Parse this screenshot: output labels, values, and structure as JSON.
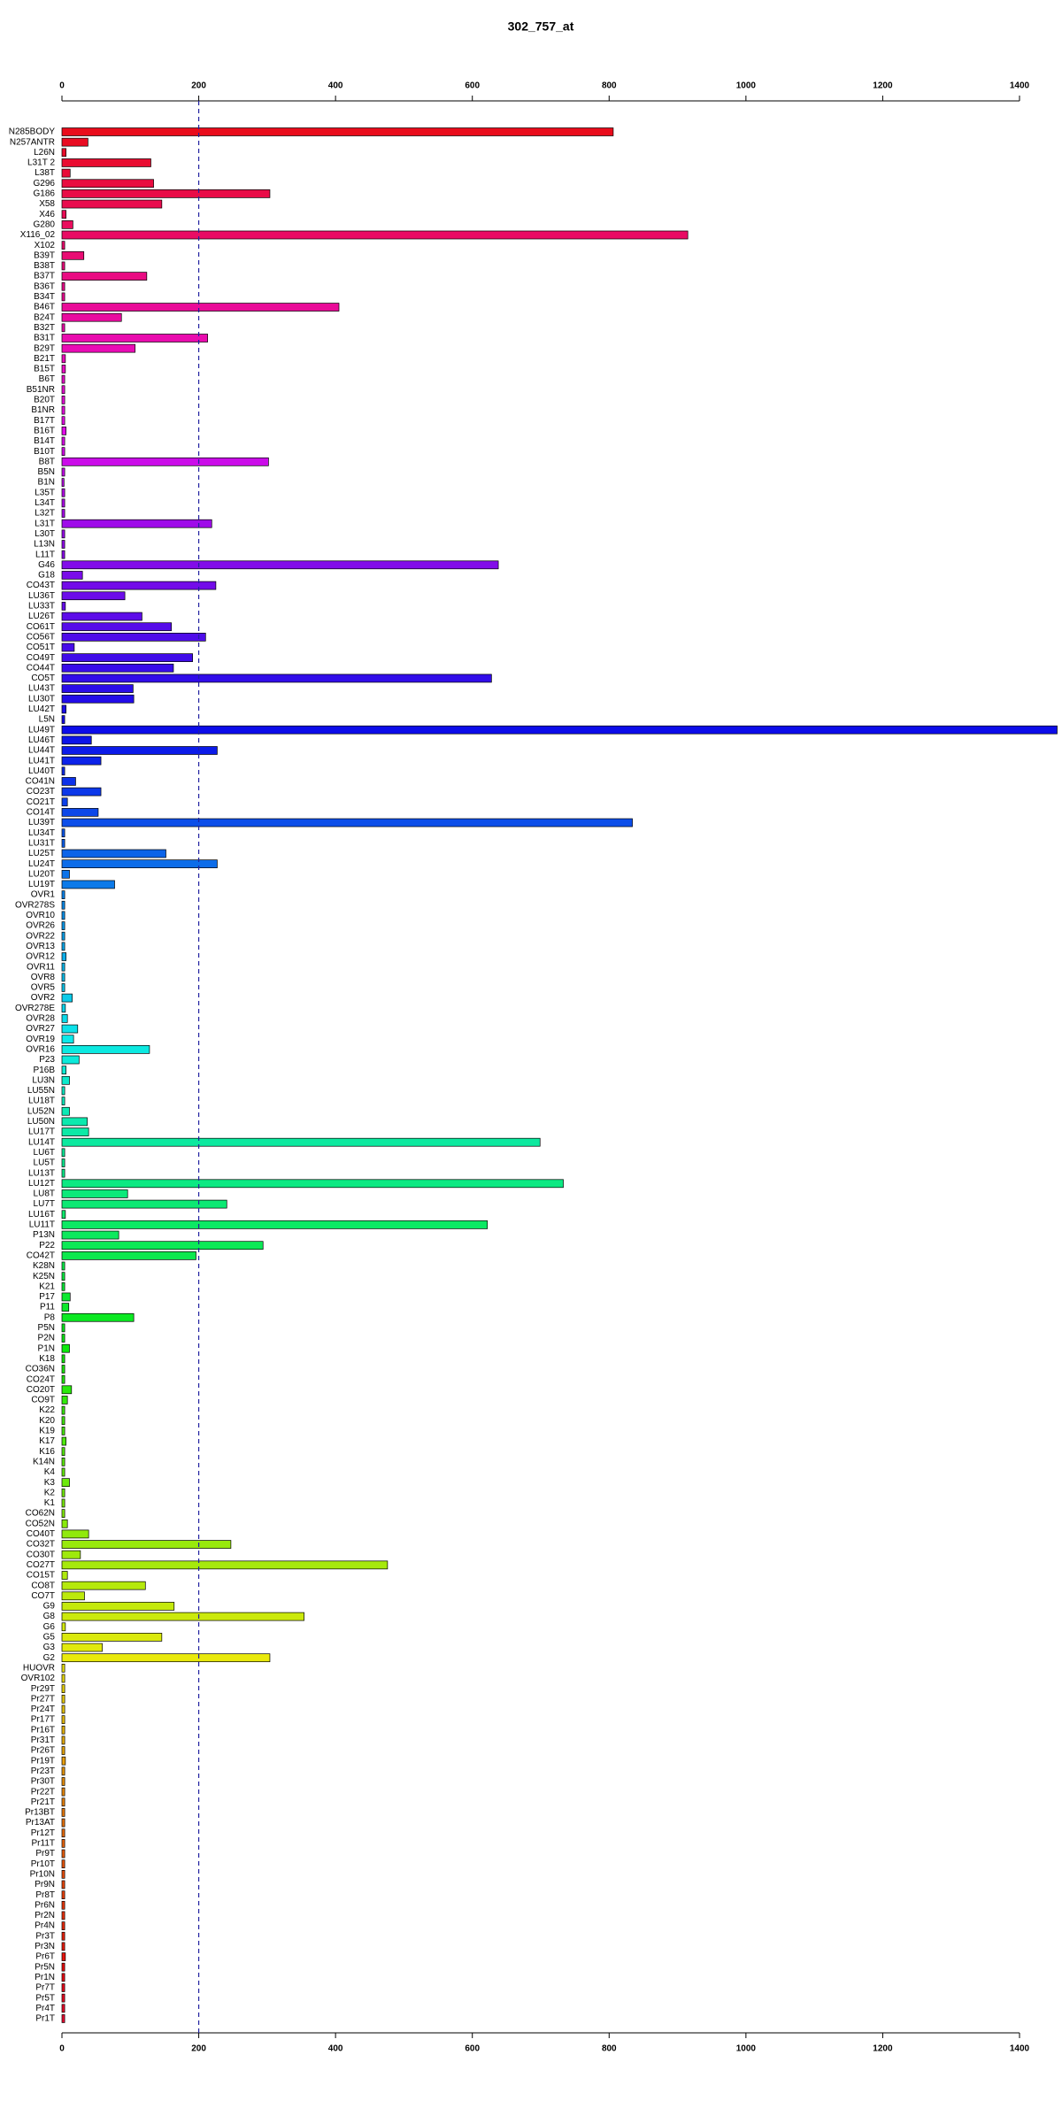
{
  "chart_data": {
    "type": "barh",
    "title": "302_757_at",
    "categories": [
      "N285BODY",
      "N257ANTR",
      "L26N",
      "L31T 2",
      "L38T",
      "G296",
      "G186",
      "X58",
      "X46",
      "G280",
      "X116_02",
      "X102",
      "B39T",
      "B38T",
      "B37T",
      "B36T",
      "B34T",
      "B46T",
      "B24T",
      "B32T",
      "B31T",
      "B29T",
      "B21T",
      "B15T",
      "B6T",
      "B51NR",
      "B20T",
      "B1NR",
      "B17T",
      "B16T",
      "B14T",
      "B10T",
      "B8T",
      "B5N",
      "B1N",
      "L35T",
      "L34T",
      "L32T",
      "L31T",
      "L30T",
      "L13N",
      "L11T",
      "G46",
      "G18",
      "CO43T",
      "LU36T",
      "LU33T",
      "LU26T",
      "CO61T",
      "CO56T",
      "CO51T",
      "CO49T",
      "CO44T",
      "CO5T",
      "LU43T",
      "LU30T",
      "LU42T",
      "L5N",
      "LU49T",
      "LU46T",
      "LU44T",
      "LU41T",
      "LU40T",
      "CO41N",
      "CO23T",
      "CO21T",
      "CO14T",
      "LU39T",
      "LU34T",
      "LU31T",
      "LU25T",
      "LU24T",
      "LU20T",
      "LU19T",
      "OVR1",
      "OVR278S",
      "OVR10",
      "OVR26",
      "OVR22",
      "OVR13",
      "OVR12",
      "OVR11",
      "OVR8",
      "OVR5",
      "OVR2",
      "OVR278E",
      "OVR28",
      "OVR27",
      "OVR19",
      "OVR16",
      "P23",
      "P16B",
      "LU3N",
      "LU55N",
      "LU18T",
      "LU52N",
      "LU50N",
      "LU17T",
      "LU14T",
      "LU6T",
      "LU5T",
      "LU13T",
      "LU12T",
      "LU8T",
      "LU7T",
      "LU16T",
      "LU11T",
      "P13N",
      "P22",
      "CO42T",
      "K28N",
      "K25N",
      "K21",
      "P17",
      "P11",
      "P8",
      "P5N",
      "P2N",
      "P1N",
      "K18",
      "CO36N",
      "CO24T",
      "CO20T",
      "CO9T",
      "K22",
      "K20",
      "K19",
      "K17",
      "K16",
      "K14N",
      "K4",
      "K3",
      "K2",
      "K1",
      "CO62N",
      "CO52N",
      "CO40T",
      "CO32T",
      "CO30T",
      "CO27T",
      "CO15T",
      "CO8T",
      "CO7T",
      "G9",
      "G8",
      "G6",
      "G5",
      "G3",
      "G2",
      "HUOVR",
      "OVR102",
      "Pr29T",
      "Pr27T",
      "Pr24T",
      "Pr17T",
      "Pr16T",
      "Pr31T",
      "Pr26T",
      "Pr19T",
      "Pr23T",
      "Pr30T",
      "Pr22T",
      "Pr21T",
      "Pr13BT",
      "Pr13AT",
      "Pr12T",
      "Pr11T",
      "Pr9T",
      "Pr10T",
      "Pr10N",
      "Pr9N",
      "Pr8T",
      "Pr6N",
      "Pr2N",
      "Pr4N",
      "Pr3T",
      "Pr3N",
      "Pr6T",
      "Pr5N",
      "Pr1N",
      "Pr7T",
      "Pr5T",
      "Pr4T",
      "Pr1T"
    ],
    "values": [
      806,
      38,
      6,
      130,
      12,
      134,
      304,
      146,
      6,
      16,
      915,
      4,
      32,
      4,
      124,
      4,
      4,
      405,
      87,
      4,
      213,
      107,
      5,
      5,
      4,
      4,
      4,
      4,
      4,
      6,
      4,
      4,
      302,
      4,
      3,
      4,
      4,
      4,
      219,
      4,
      4,
      4,
      638,
      30,
      225,
      92,
      5,
      117,
      160,
      210,
      18,
      191,
      163,
      628,
      104,
      105,
      6,
      4,
      1455,
      43,
      227,
      57,
      4,
      20,
      57,
      8,
      53,
      834,
      4,
      4,
      152,
      227,
      11,
      77,
      4,
      4,
      4,
      4,
      4,
      4,
      6,
      4,
      4,
      4,
      15,
      5,
      8,
      23,
      17,
      128,
      25,
      6,
      11,
      4,
      4,
      11,
      37,
      39,
      699,
      4,
      4,
      4,
      733,
      96,
      241,
      5,
      622,
      83,
      294,
      196,
      4,
      4,
      4,
      12,
      10,
      105,
      4,
      4,
      11,
      4,
      4,
      4,
      14,
      8,
      4,
      4,
      4,
      6,
      4,
      4,
      4,
      11,
      4,
      4,
      4,
      8,
      39,
      247,
      27,
      476,
      8,
      122,
      33,
      164,
      354,
      5,
      146,
      59,
      304,
      4,
      4,
      4,
      4,
      4,
      4,
      4,
      4,
      4,
      5,
      4,
      4,
      4,
      4,
      4,
      4,
      4,
      4,
      4,
      4,
      4,
      4,
      4,
      4,
      4,
      4,
      4,
      4,
      5,
      4,
      4,
      4,
      4,
      4,
      4
    ],
    "colors": [
      "hsl(356,90%,48%)",
      "hsl(354,90%,48%)",
      "hsl(352,90%,48%)",
      "hsl(350,90%,48%)",
      "hsl(348,90%,48%)",
      "hsl(346,90%,48%)",
      "hsl(344,90%,48%)",
      "hsl(342,90%,48%)",
      "hsl(340,90%,48%)",
      "hsl(338,90%,48%)",
      "hsl(336,90%,48%)",
      "hsl(334,90%,48%)",
      "hsl(332,90%,48%)",
      "hsl(330,90%,48%)",
      "hsl(328,90%,48%)",
      "hsl(326,90%,48%)",
      "hsl(324,90%,48%)",
      "hsl(322,90%,48%)",
      "hsl(320,90%,48%)",
      "hsl(318,90%,48%)",
      "hsl(316,90%,48%)",
      "hsl(314,90%,48%)",
      "hsl(312,90%,48%)",
      "hsl(310,90%,48%)",
      "hsl(308,90%,48%)",
      "hsl(306,90%,48%)",
      "hsl(304,90%,48%)",
      "hsl(302,90%,48%)",
      "hsl(300,90%,48%)",
      "hsl(298,90%,48%)",
      "hsl(296,90%,48%)",
      "hsl(294,90%,48%)",
      "hsl(292,90%,48%)",
      "hsl(290,90%,48%)",
      "hsl(288,90%,48%)",
      "hsl(286,90%,48%)",
      "hsl(284,90%,48%)",
      "hsl(282,90%,48%)",
      "hsl(280,90%,48%)",
      "hsl(278,90%,48%)",
      "hsl(276,90%,48%)",
      "hsl(274,90%,48%)",
      "hsl(272,90%,48%)",
      "hsl(270,90%,48%)",
      "hsl(268,90%,48%)",
      "hsl(266,90%,48%)",
      "hsl(264,90%,48%)",
      "hsl(262,90%,48%)",
      "hsl(260,90%,48%)",
      "hsl(258,90%,48%)",
      "hsl(256,90%,48%)",
      "hsl(254,90%,48%)",
      "hsl(252,90%,48%)",
      "hsl(250,90%,48%)",
      "hsl(248,90%,48%)",
      "hsl(246,90%,48%)",
      "hsl(244,90%,48%)",
      "hsl(242,90%,48%)",
      "hsl(240,90%,48%)",
      "hsl(238,90%,48%)",
      "hsl(236,90%,48%)",
      "hsl(234,90%,48%)",
      "hsl(232,90%,48%)",
      "hsl(230,90%,48%)",
      "hsl(228,90%,48%)",
      "hsl(226,90%,48%)",
      "hsl(224,90%,48%)",
      "hsl(222,90%,48%)",
      "hsl(220,90%,48%)",
      "hsl(218,90%,48%)",
      "hsl(216,90%,48%)",
      "hsl(214,90%,48%)",
      "hsl(212,90%,48%)",
      "hsl(210,90%,48%)",
      "hsl(208,90%,48%)",
      "hsl(206,90%,48%)",
      "hsl(204,90%,48%)",
      "hsl(202,90%,48%)",
      "hsl(200,90%,48%)",
      "hsl(198,90%,48%)",
      "hsl(196,90%,48%)",
      "hsl(194,90%,48%)",
      "hsl(192,90%,48%)",
      "hsl(190,90%,48%)",
      "hsl(188,90%,48%)",
      "hsl(186,90%,48%)",
      "hsl(184,90%,48%)",
      "hsl(182,90%,48%)",
      "hsl(180,90%,48%)",
      "hsl(178,90%,48%)",
      "hsl(176,90%,48%)",
      "hsl(174,90%,48%)",
      "hsl(172,90%,48%)",
      "hsl(170,90%,48%)",
      "hsl(168,90%,48%)",
      "hsl(166,90%,48%)",
      "hsl(164,90%,48%)",
      "hsl(162,90%,48%)",
      "hsl(160,90%,48%)",
      "hsl(158,90%,48%)",
      "hsl(156,90%,48%)",
      "hsl(154,90%,48%)",
      "hsl(152,90%,48%)",
      "hsl(150,90%,48%)",
      "hsl(148,90%,48%)",
      "hsl(146,90%,48%)",
      "hsl(144,90%,48%)",
      "hsl(142,90%,48%)",
      "hsl(140,90%,48%)",
      "hsl(138,90%,48%)",
      "hsl(136,90%,48%)",
      "hsl(134,90%,48%)",
      "hsl(132,90%,48%)",
      "hsl(130,90%,48%)",
      "hsl(128,90%,48%)",
      "hsl(126,90%,48%)",
      "hsl(124,90%,48%)",
      "hsl(122,90%,48%)",
      "hsl(120,90%,48%)",
      "hsl(118,90%,48%)",
      "hsl(116,90%,48%)",
      "hsl(114,90%,48%)",
      "hsl(112,90%,48%)",
      "hsl(110,90%,48%)",
      "hsl(108,90%,48%)",
      "hsl(106,90%,48%)",
      "hsl(104,90%,48%)",
      "hsl(102,90%,48%)",
      "hsl(100,90%,48%)",
      "hsl(98,90%,48%)",
      "hsl(96,90%,48%)",
      "hsl(94,90%,48%)",
      "hsl(92,90%,48%)",
      "hsl(90,90%,48%)",
      "hsl(88,90%,48%)",
      "hsl(86,90%,48%)",
      "hsl(84,90%,48%)",
      "hsl(82,90%,48%)",
      "hsl(80,90%,48%)",
      "hsl(78,90%,48%)",
      "hsl(76,90%,48%)",
      "hsl(74,90%,48%)",
      "hsl(72,90%,48%)",
      "hsl(70,90%,48%)",
      "hsl(68,90%,48%)",
      "hsl(66,90%,48%)",
      "hsl(64,90%,48%)",
      "hsl(62,90%,48%)",
      "hsl(60,90%,48%)",
      "hsl(58,90%,48%)",
      "hsl(56,90%,48%)",
      "hsl(54,90%,48%)",
      "hsl(52,90%,48%)",
      "hsl(50,90%,48%)",
      "hsl(48,90%,48%)",
      "hsl(46,90%,48%)",
      "hsl(44,90%,48%)",
      "hsl(42,90%,48%)",
      "hsl(40,90%,48%)",
      "hsl(38,90%,48%)",
      "hsl(36,90%,48%)",
      "hsl(34,90%,48%)",
      "hsl(32,90%,48%)",
      "hsl(30,90%,48%)",
      "hsl(28,90%,48%)",
      "hsl(26,90%,48%)",
      "hsl(24,90%,48%)",
      "hsl(22,90%,48%)",
      "hsl(20,90%,48%)",
      "hsl(18,90%,48%)",
      "hsl(16,90%,48%)",
      "hsl(14,90%,48%)",
      "hsl(12,90%,48%)",
      "hsl(10,90%,48%)",
      "hsl(8,90%,48%)",
      "hsl(6,90%,48%)",
      "hsl(4,90%,48%)",
      "hsl(2,90%,48%)",
      "hsl(0,90%,48%)",
      "hsl(358,90%,48%)",
      "hsl(356,90%,48%)",
      "hsl(354,90%,48%)",
      "hsl(352,90%,48%)",
      "hsl(350,90%,48%)"
    ],
    "xlim": [
      0,
      1400
    ],
    "xticks": [
      0,
      200,
      400,
      600,
      800,
      1000,
      1200,
      1400
    ],
    "vline": 200,
    "vline_color": "#2020a0"
  }
}
